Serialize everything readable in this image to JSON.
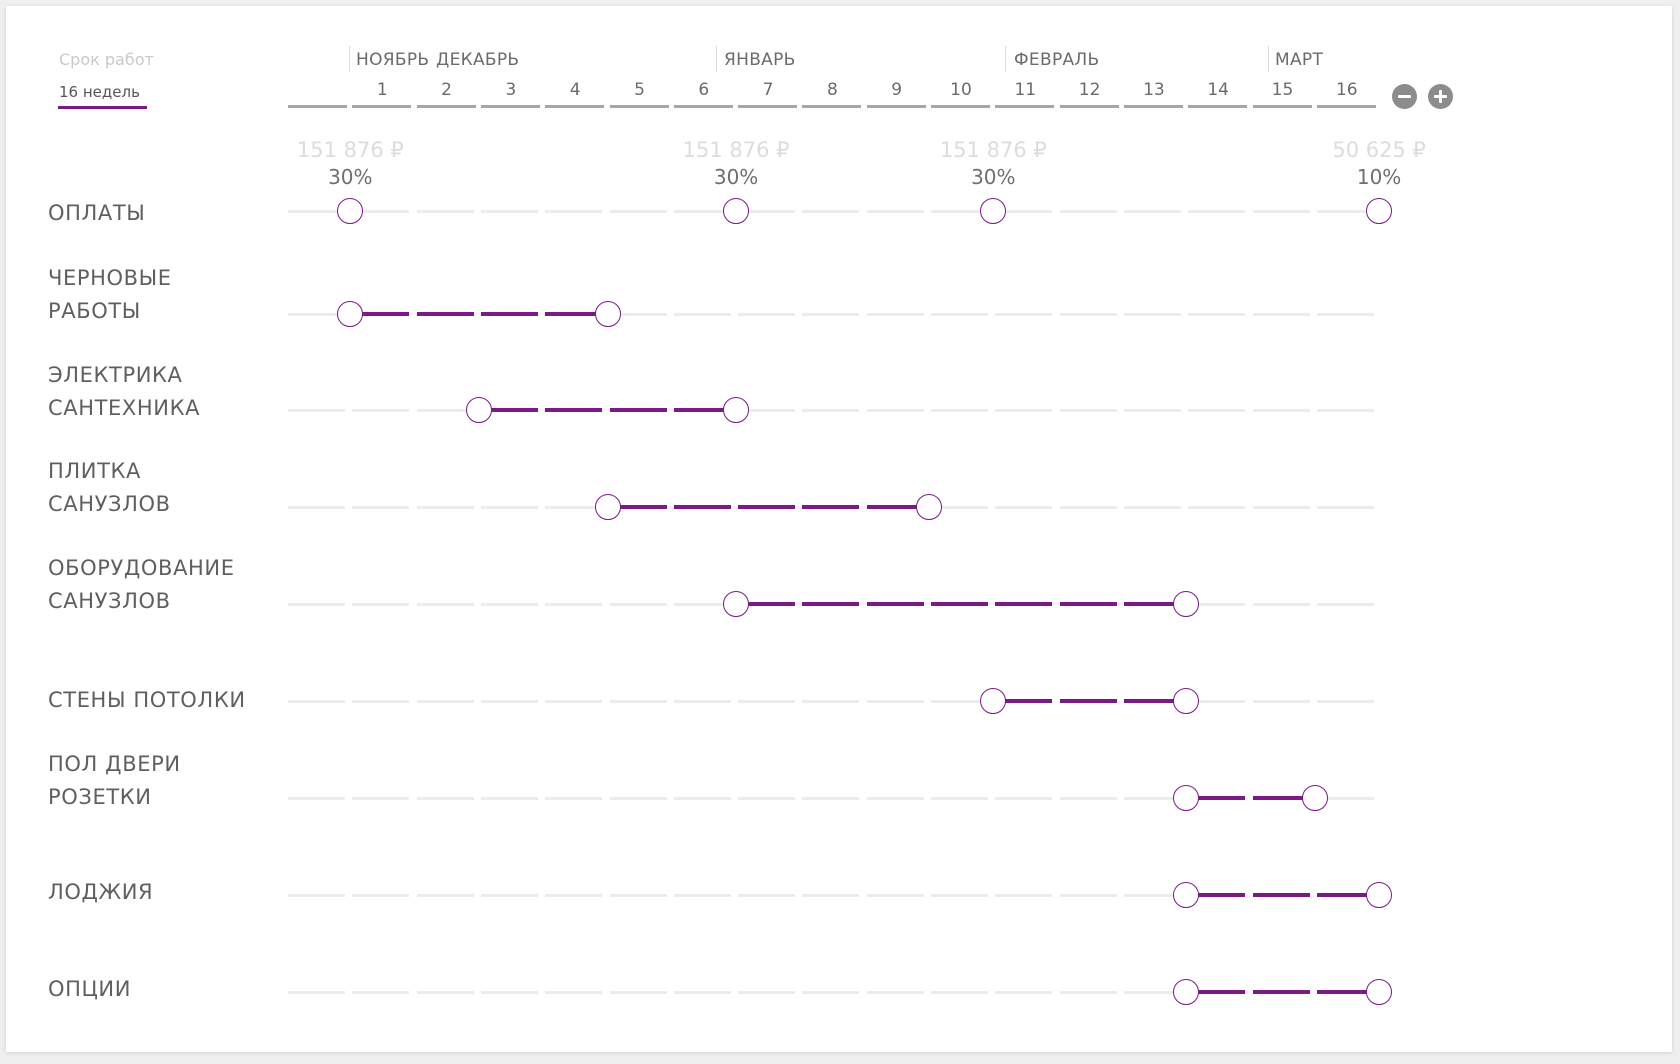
{
  "term": {
    "label": "Срок работ",
    "value": "16 недель"
  },
  "months": [
    {
      "label": "НОЯБРЬ",
      "start_week": 2
    },
    {
      "label": "ДЕКАБРЬ",
      "start_week": 2
    },
    {
      "label": "ЯНВАРЬ",
      "start_week": 7
    },
    {
      "label": "ФЕВРАЛЬ",
      "start_week": 11
    },
    {
      "label": "МАРТ",
      "start_week": 15
    }
  ],
  "weeks": [
    "",
    "1",
    "2",
    "3",
    "4",
    "5",
    "6",
    "7",
    "8",
    "9",
    "10",
    "11",
    "12",
    "13",
    "14",
    "15",
    "16"
  ],
  "zoom": {
    "minus_icon": "minus-circle-icon",
    "plus_icon": "plus-circle-icon"
  },
  "colors": {
    "accent": "#7a1a86",
    "track": "#ececec",
    "week_bar": "#a7a7a7",
    "text": "#5f5f5f"
  },
  "payments": {
    "label": "ОПЛАТЫ",
    "points": [
      {
        "week": 1,
        "amount": "151 876 ₽",
        "percent": "30%"
      },
      {
        "week": 7,
        "amount": "151 876 ₽",
        "percent": "30%"
      },
      {
        "week": 11,
        "amount": "151 876 ₽",
        "percent": "30%"
      },
      {
        "week": 17,
        "amount": "50 625 ₽",
        "percent": "10%"
      }
    ]
  },
  "tasks": [
    {
      "lines": [
        "ЧЕРНОВЫЕ",
        "РАБОТЫ"
      ],
      "start": 1,
      "end": 5
    },
    {
      "lines": [
        "ЭЛЕКТРИКА",
        "САНТЕХНИКА"
      ],
      "start": 3,
      "end": 7
    },
    {
      "lines": [
        "ПЛИТКА",
        "САНУЗЛОВ"
      ],
      "start": 5,
      "end": 10
    },
    {
      "lines": [
        "ОБОРУДОВАНИЕ",
        "САНУЗЛОВ"
      ],
      "start": 7,
      "end": 14
    },
    {
      "lines": [
        "СТЕНЫ ПОТОЛКИ"
      ],
      "start": 11,
      "end": 14
    },
    {
      "lines": [
        "ПОЛ ДВЕРИ",
        "РОЗЕТКИ"
      ],
      "start": 14,
      "end": 16
    },
    {
      "lines": [
        "ЛОДЖИЯ"
      ],
      "start": 14,
      "end": 17
    },
    {
      "lines": [
        "ОПЦИИ"
      ],
      "start": 14,
      "end": 17
    }
  ]
}
